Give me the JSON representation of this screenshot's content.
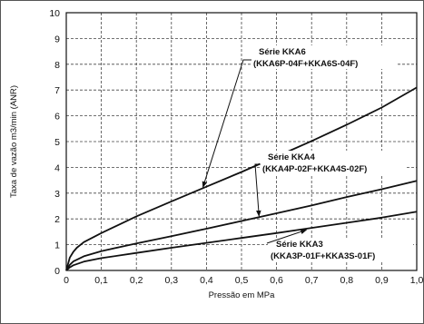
{
  "chart_data": {
    "type": "line",
    "xlabel": "Pressão em MPa",
    "ylabel": "Taxa de vazão m3/min (ANR)",
    "xlim": [
      0,
      1.0
    ],
    "ylim": [
      0,
      10
    ],
    "x_ticks": [
      "0",
      "0,1",
      "0,2",
      "0,3",
      "0,4",
      "0,5",
      "0,6",
      "0,7",
      "0,8",
      "0,9",
      "1,0"
    ],
    "y_ticks": [
      "0",
      "1",
      "2",
      "3",
      "4",
      "5",
      "6",
      "7",
      "8",
      "9",
      "10"
    ],
    "grid": true,
    "line_color": "#111111",
    "series": [
      {
        "name": "Série KKA6",
        "subname": "(KKA6P-04F+KKA6S-04F)",
        "x": [
          0,
          0.01,
          0.02,
          0.03,
          0.05,
          0.1,
          0.2,
          0.3,
          0.4,
          0.5,
          0.6,
          0.7,
          0.8,
          0.9,
          1.0
        ],
        "y": [
          0,
          0.5,
          0.72,
          0.88,
          1.1,
          1.45,
          2.1,
          2.68,
          3.25,
          3.82,
          4.42,
          5.02,
          5.65,
          6.32,
          7.1
        ],
        "annotation_at": 0.39
      },
      {
        "name": "Série KKA4",
        "subname": "(KKA4P-02F+KKA4S-02F)",
        "x": [
          0,
          0.01,
          0.02,
          0.05,
          0.1,
          0.2,
          0.3,
          0.4,
          0.5,
          0.6,
          0.7,
          0.8,
          0.9,
          1.0
        ],
        "y": [
          0,
          0.22,
          0.35,
          0.55,
          0.75,
          1.05,
          1.33,
          1.62,
          1.92,
          2.22,
          2.52,
          2.85,
          3.15,
          3.48
        ],
        "annotation_at": 0.55
      },
      {
        "name": "Série KKA3",
        "subname": "(KKA3P-01F+KKA3S-01F)",
        "x": [
          0,
          0.01,
          0.02,
          0.05,
          0.1,
          0.2,
          0.3,
          0.4,
          0.5,
          0.6,
          0.7,
          0.8,
          0.9,
          1.0
        ],
        "y": [
          0,
          0.12,
          0.2,
          0.34,
          0.48,
          0.68,
          0.88,
          1.07,
          1.26,
          1.45,
          1.65,
          1.85,
          2.05,
          2.28
        ],
        "annotation_at": 0.68
      }
    ]
  }
}
